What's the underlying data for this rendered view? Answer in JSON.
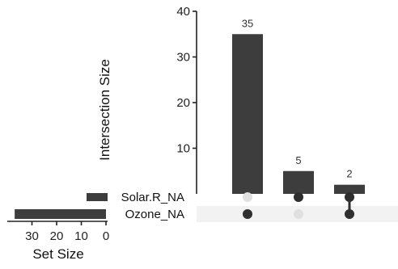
{
  "chart_data": {
    "type": "bar",
    "kind": "upset",
    "intersections": {
      "values": [
        35,
        5,
        2
      ],
      "ylabel": "Intersection Size",
      "ylim": [
        0,
        40
      ],
      "yticks": [
        10,
        20,
        30,
        40
      ],
      "bar_color": "#3d3d3d",
      "label_color": "#333333"
    },
    "matrix": {
      "sets": [
        "Solar.R_NA",
        "Ozone_NA"
      ],
      "membership": [
        [
          false,
          true
        ],
        [
          true,
          false
        ],
        [
          true,
          true
        ]
      ],
      "dot_on_color": "#2f2f2f",
      "dot_off_color": "#e0e0e0",
      "stripe_color": "#f2f2f2"
    },
    "set_sizes": {
      "values": [
        7,
        37
      ],
      "xlabel": "Set Size",
      "xlim": [
        40,
        0
      ],
      "xticks": [
        30,
        20,
        10,
        0
      ],
      "bar_color": "#3d3d3d"
    },
    "grid": false,
    "legend": "none"
  }
}
